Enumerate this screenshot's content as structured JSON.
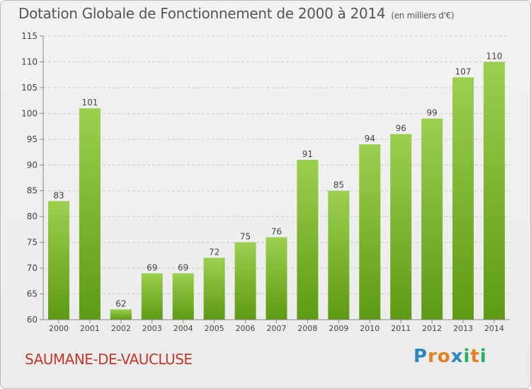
{
  "title": "Dotation Globale de Fonctionnement de 2000 à 2014",
  "unit_label": "(en milliers d'€)",
  "commune": "SAUMANE-DE-VAUCLUSE",
  "logo": {
    "letters": [
      "P",
      "r",
      "o",
      "x",
      "i",
      "t",
      "i"
    ],
    "colors": [
      "#2e86c1",
      "#e67e22",
      "#e67e22",
      "#2e86c1",
      "#27ae60",
      "#e67e22",
      "#27ae60"
    ]
  },
  "colors": {
    "bar_top": "#9bd04e",
    "bar_bottom": "#5e9a14",
    "title": "#555555",
    "commune": "#c0392b"
  },
  "chart_data": {
    "type": "bar",
    "categories": [
      "2000",
      "2001",
      "2002",
      "2003",
      "2004",
      "2005",
      "2006",
      "2007",
      "2008",
      "2009",
      "2010",
      "2011",
      "2012",
      "2013",
      "2014"
    ],
    "values": [
      83,
      101,
      62,
      69,
      69,
      72,
      75,
      76,
      91,
      85,
      94,
      96,
      99,
      107,
      110
    ],
    "ylim": [
      60,
      115
    ],
    "yticks": [
      60,
      65,
      70,
      75,
      80,
      85,
      90,
      95,
      100,
      105,
      110,
      115
    ],
    "grid": true
  }
}
